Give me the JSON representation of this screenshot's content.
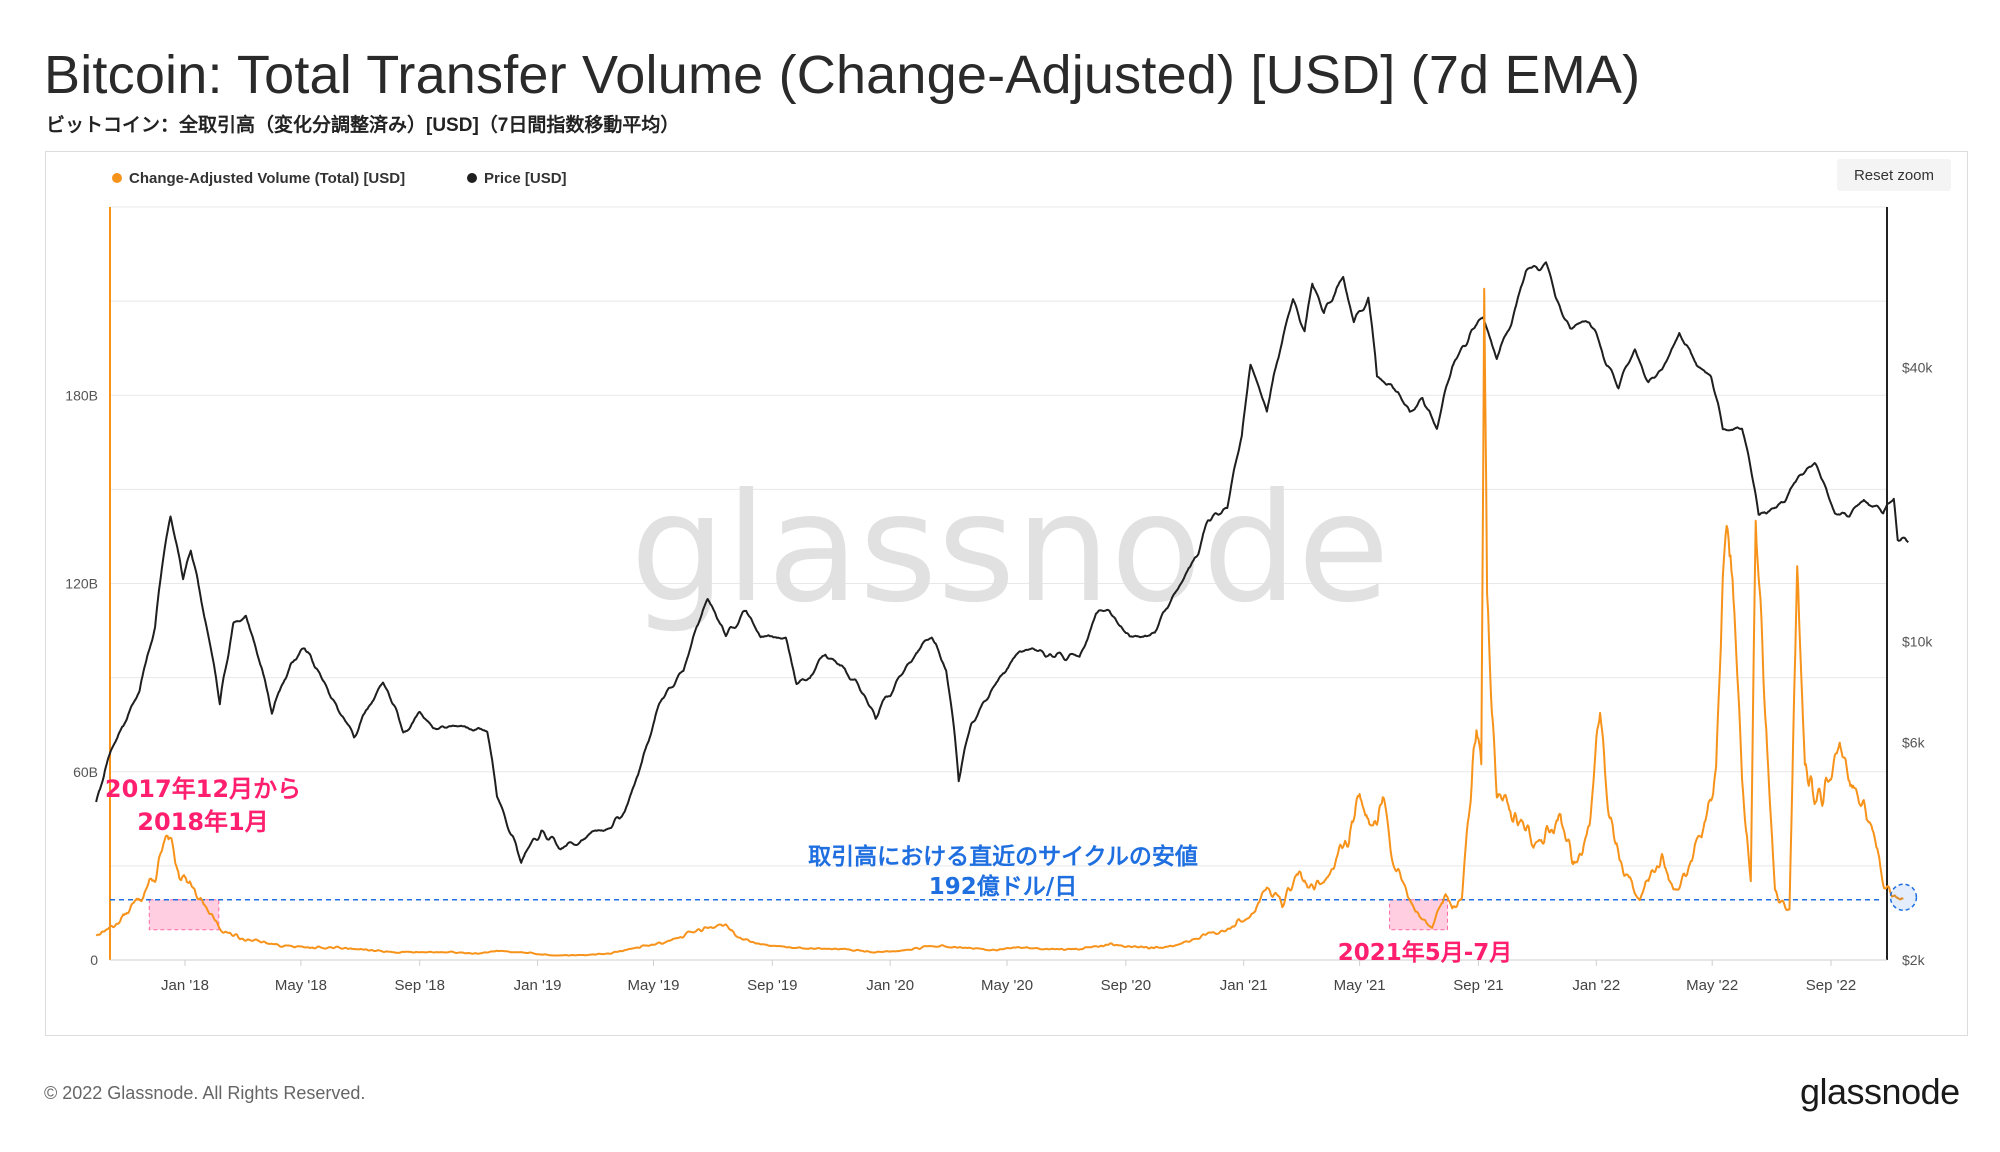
{
  "header": {
    "title": "Bitcoin: Total Transfer Volume (Change-Adjusted) [USD] (7d EMA)",
    "subtitle": "ビットコイン：全取引高（変化分調整済み）[USD]（7日間指数移動平均）"
  },
  "toolbar": {
    "reset_zoom_label": "Reset zoom"
  },
  "footer": {
    "copyright": "© 2022 Glassnode. All Rights Reserved.",
    "logo": "glassnode"
  },
  "watermark": "glassnode",
  "colors": {
    "volume": "#f7931a",
    "price": "#1f1f1f",
    "annotation_pink": "#ff1f6e",
    "annotation_blue": "#1f6fe0",
    "highlight_fill": "#ffc6dc",
    "grid": "#e8e8e8"
  },
  "chart_data": {
    "type": "line",
    "x_tick_labels": [
      "Jan '18",
      "May '18",
      "Sep '18",
      "Jan '19",
      "May '19",
      "Sep '19",
      "Jan '20",
      "May '20",
      "Sep '20",
      "Jan '21",
      "May '21",
      "Sep '21",
      "Jan '22",
      "May '22",
      "Sep '22"
    ],
    "y_left_tick_labels": [
      "0",
      "60B",
      "120B",
      "180B"
    ],
    "y_left_ticks": [
      0,
      60,
      120,
      180
    ],
    "y_left_range": [
      0,
      240
    ],
    "y_right_tick_labels": [
      "$2k",
      "$6k",
      "$10k",
      "$40k"
    ],
    "y_right_ticks": [
      2000,
      6000,
      10000,
      40000
    ],
    "y_right_scale": "log",
    "y_right_range": [
      2000,
      90000
    ],
    "legend": [
      "Change-Adjusted Volume (Total) [USD]",
      "Price [USD]"
    ],
    "legend_position": "top-left",
    "series": [
      {
        "name": "Change-Adjusted Volume (Total) [USD]",
        "axis": "left",
        "unit": "billion USD",
        "points": [
          [
            "2017-10-01",
            8
          ],
          [
            "2017-10-20",
            11
          ],
          [
            "2017-11-05",
            16
          ],
          [
            "2017-11-20",
            22
          ],
          [
            "2017-12-01",
            26
          ],
          [
            "2017-12-10",
            36
          ],
          [
            "2017-12-17",
            37
          ],
          [
            "2017-12-26",
            28
          ],
          [
            "2018-01-06",
            25
          ],
          [
            "2018-01-14",
            21
          ],
          [
            "2018-01-28",
            14
          ],
          [
            "2018-02-10",
            9
          ],
          [
            "2018-03-01",
            7
          ],
          [
            "2018-04-01",
            5
          ],
          [
            "2018-05-01",
            4
          ],
          [
            "2018-06-01",
            4
          ],
          [
            "2018-07-01",
            3.5
          ],
          [
            "2018-08-01",
            2.5
          ],
          [
            "2018-09-01",
            2.5
          ],
          [
            "2018-10-01",
            2.5
          ],
          [
            "2018-11-01",
            2
          ],
          [
            "2018-11-20",
            3
          ],
          [
            "2018-12-15",
            2.5
          ],
          [
            "2019-01-15",
            1.5
          ],
          [
            "2019-02-15",
            1.5
          ],
          [
            "2019-03-15",
            2
          ],
          [
            "2019-04-15",
            4
          ],
          [
            "2019-05-15",
            6
          ],
          [
            "2019-06-01",
            8
          ],
          [
            "2019-06-25",
            10
          ],
          [
            "2019-07-10",
            12
          ],
          [
            "2019-07-25",
            8
          ],
          [
            "2019-08-15",
            5
          ],
          [
            "2019-09-15",
            4
          ],
          [
            "2019-10-15",
            3.5
          ],
          [
            "2019-11-15",
            3.5
          ],
          [
            "2019-12-15",
            2.5
          ],
          [
            "2020-01-15",
            3
          ],
          [
            "2020-02-15",
            4.5
          ],
          [
            "2020-03-15",
            4
          ],
          [
            "2020-04-15",
            3
          ],
          [
            "2020-05-15",
            4
          ],
          [
            "2020-06-15",
            3.5
          ],
          [
            "2020-07-15",
            3.5
          ],
          [
            "2020-08-15",
            5
          ],
          [
            "2020-09-15",
            4
          ],
          [
            "2020-10-15",
            4
          ],
          [
            "2020-11-15",
            7
          ],
          [
            "2020-12-15",
            10
          ],
          [
            "2021-01-10",
            15
          ],
          [
            "2021-01-25",
            24
          ],
          [
            "2021-02-10",
            18
          ],
          [
            "2021-02-25",
            28
          ],
          [
            "2021-03-15",
            23
          ],
          [
            "2021-04-01",
            28
          ],
          [
            "2021-04-20",
            40
          ],
          [
            "2021-05-01",
            52
          ],
          [
            "2021-05-15",
            42
          ],
          [
            "2021-05-25",
            50
          ],
          [
            "2021-06-05",
            32
          ],
          [
            "2021-06-20",
            20
          ],
          [
            "2021-07-01",
            15
          ],
          [
            "2021-07-15",
            10
          ],
          [
            "2021-07-28",
            22
          ],
          [
            "2021-08-05",
            16
          ],
          [
            "2021-08-15",
            20
          ],
          [
            "2021-08-25",
            55
          ],
          [
            "2021-08-30",
            80
          ],
          [
            "2021-09-04",
            62
          ],
          [
            "2021-09-07",
            210
          ],
          [
            "2021-09-10",
            110
          ],
          [
            "2021-09-20",
            50
          ],
          [
            "2021-10-10",
            45
          ],
          [
            "2021-11-01",
            35
          ],
          [
            "2021-11-25",
            44
          ],
          [
            "2021-12-10",
            30
          ],
          [
            "2021-12-25",
            42
          ],
          [
            "2022-01-05",
            82
          ],
          [
            "2022-01-10",
            58
          ],
          [
            "2022-01-25",
            30
          ],
          [
            "2022-02-15",
            20
          ],
          [
            "2022-03-10",
            32
          ],
          [
            "2022-03-25",
            22
          ],
          [
            "2022-04-20",
            40
          ],
          [
            "2022-05-05",
            60
          ],
          [
            "2022-05-12",
            125
          ],
          [
            "2022-05-20",
            135
          ],
          [
            "2022-06-01",
            60
          ],
          [
            "2022-06-10",
            25
          ],
          [
            "2022-06-15",
            138
          ],
          [
            "2022-06-25",
            80
          ],
          [
            "2022-07-05",
            22
          ],
          [
            "2022-07-20",
            16
          ],
          [
            "2022-07-28",
            125
          ],
          [
            "2022-08-05",
            60
          ],
          [
            "2022-08-20",
            52
          ],
          [
            "2022-09-10",
            65
          ],
          [
            "2022-09-25",
            55
          ],
          [
            "2022-10-10",
            45
          ],
          [
            "2022-10-25",
            25
          ],
          [
            "2022-11-05",
            19
          ],
          [
            "2022-11-15",
            20
          ]
        ]
      },
      {
        "name": "Price [USD]",
        "axis": "right",
        "unit": "USD",
        "points": [
          [
            "2017-10-01",
            4400
          ],
          [
            "2017-10-15",
            5600
          ],
          [
            "2017-11-01",
            6800
          ],
          [
            "2017-11-15",
            7800
          ],
          [
            "2017-12-01",
            10800
          ],
          [
            "2017-12-17",
            18800
          ],
          [
            "2017-12-30",
            13800
          ],
          [
            "2018-01-07",
            16000
          ],
          [
            "2018-01-20",
            11500
          ],
          [
            "2018-02-06",
            7200
          ],
          [
            "2018-02-20",
            11000
          ],
          [
            "2018-03-05",
            11400
          ],
          [
            "2018-04-01",
            7000
          ],
          [
            "2018-04-20",
            8900
          ],
          [
            "2018-05-05",
            9700
          ],
          [
            "2018-06-01",
            7500
          ],
          [
            "2018-06-25",
            6200
          ],
          [
            "2018-07-25",
            8200
          ],
          [
            "2018-08-15",
            6300
          ],
          [
            "2018-09-01",
            7000
          ],
          [
            "2018-09-15",
            6500
          ],
          [
            "2018-10-15",
            6500
          ],
          [
            "2018-11-10",
            6400
          ],
          [
            "2018-11-20",
            4600
          ],
          [
            "2018-12-15",
            3300
          ],
          [
            "2019-01-05",
            3800
          ],
          [
            "2019-01-25",
            3500
          ],
          [
            "2019-02-15",
            3700
          ],
          [
            "2019-03-15",
            3900
          ],
          [
            "2019-04-01",
            4200
          ],
          [
            "2019-04-15",
            5100
          ],
          [
            "2019-05-15",
            7900
          ],
          [
            "2019-06-01",
            8600
          ],
          [
            "2019-06-26",
            12500
          ],
          [
            "2019-07-15",
            10500
          ],
          [
            "2019-08-05",
            11700
          ],
          [
            "2019-08-20",
            10200
          ],
          [
            "2019-09-15",
            10200
          ],
          [
            "2019-09-26",
            8200
          ],
          [
            "2019-10-10",
            8300
          ],
          [
            "2019-10-26",
            9500
          ],
          [
            "2019-11-15",
            8600
          ],
          [
            "2019-12-17",
            6800
          ],
          [
            "2020-01-15",
            8700
          ],
          [
            "2020-02-13",
            10300
          ],
          [
            "2020-02-28",
            8700
          ],
          [
            "2020-03-12",
            5000
          ],
          [
            "2020-03-25",
            6700
          ],
          [
            "2020-04-30",
            8700
          ],
          [
            "2020-05-15",
            9600
          ],
          [
            "2020-06-15",
            9400
          ],
          [
            "2020-07-15",
            9200
          ],
          [
            "2020-08-01",
            11500
          ],
          [
            "2020-08-15",
            11800
          ],
          [
            "2020-09-05",
            10200
          ],
          [
            "2020-10-01",
            10600
          ],
          [
            "2020-10-25",
            13000
          ],
          [
            "2020-11-15",
            16000
          ],
          [
            "2020-11-25",
            18500
          ],
          [
            "2020-12-15",
            19500
          ],
          [
            "2020-12-30",
            28000
          ],
          [
            "2021-01-08",
            40000
          ],
          [
            "2021-01-25",
            32000
          ],
          [
            "2021-02-10",
            46000
          ],
          [
            "2021-02-21",
            57000
          ],
          [
            "2021-03-05",
            48000
          ],
          [
            "2021-03-13",
            61000
          ],
          [
            "2021-03-25",
            53000
          ],
          [
            "2021-04-14",
            63000
          ],
          [
            "2021-04-25",
            50000
          ],
          [
            "2021-05-10",
            57000
          ],
          [
            "2021-05-19",
            37000
          ],
          [
            "2021-06-10",
            36000
          ],
          [
            "2021-06-22",
            31500
          ],
          [
            "2021-07-05",
            34000
          ],
          [
            "2021-07-20",
            29800
          ],
          [
            "2021-08-05",
            40000
          ],
          [
            "2021-08-25",
            48000
          ],
          [
            "2021-09-06",
            52000
          ],
          [
            "2021-09-20",
            42000
          ],
          [
            "2021-10-05",
            50000
          ],
          [
            "2021-10-20",
            65000
          ],
          [
            "2021-11-10",
            68000
          ],
          [
            "2021-11-20",
            57000
          ],
          [
            "2021-12-05",
            49000
          ],
          [
            "2021-12-25",
            50500
          ],
          [
            "2022-01-10",
            42000
          ],
          [
            "2022-01-24",
            36000
          ],
          [
            "2022-02-10",
            44000
          ],
          [
            "2022-02-24",
            37500
          ],
          [
            "2022-03-10",
            39000
          ],
          [
            "2022-03-28",
            47500
          ],
          [
            "2022-04-15",
            40500
          ],
          [
            "2022-04-30",
            38000
          ],
          [
            "2022-05-12",
            29000
          ],
          [
            "2022-06-01",
            30000
          ],
          [
            "2022-06-18",
            19000
          ],
          [
            "2022-07-01",
            19500
          ],
          [
            "2022-07-15",
            20500
          ],
          [
            "2022-07-30",
            23500
          ],
          [
            "2022-08-15",
            24300
          ],
          [
            "2022-09-05",
            19500
          ],
          [
            "2022-09-20",
            19000
          ],
          [
            "2022-10-05",
            20300
          ],
          [
            "2022-10-25",
            19000
          ],
          [
            "2022-11-05",
            20800
          ],
          [
            "2022-11-09",
            17000
          ],
          [
            "2022-11-20",
            16500
          ]
        ]
      }
    ],
    "reference_line": {
      "value": 19.2,
      "axis": "left",
      "style": "dashed"
    },
    "annotations": [
      {
        "text": "2017年12月から",
        "color": "pink"
      },
      {
        "text": "2018年1月",
        "color": "pink"
      },
      {
        "text": "取引高における直近のサイクルの安値",
        "color": "blue"
      },
      {
        "text": "192億ドル/日",
        "color": "blue"
      },
      {
        "text": "2021年5月-7月",
        "color": "pink"
      }
    ],
    "highlighted_ranges": [
      {
        "from": "2017-11-25",
        "to": "2018-02-05",
        "label": "2017年12月から 2018年1月"
      },
      {
        "from": "2021-06-01",
        "to": "2021-07-31",
        "label": "2021年5月-7月"
      }
    ]
  }
}
